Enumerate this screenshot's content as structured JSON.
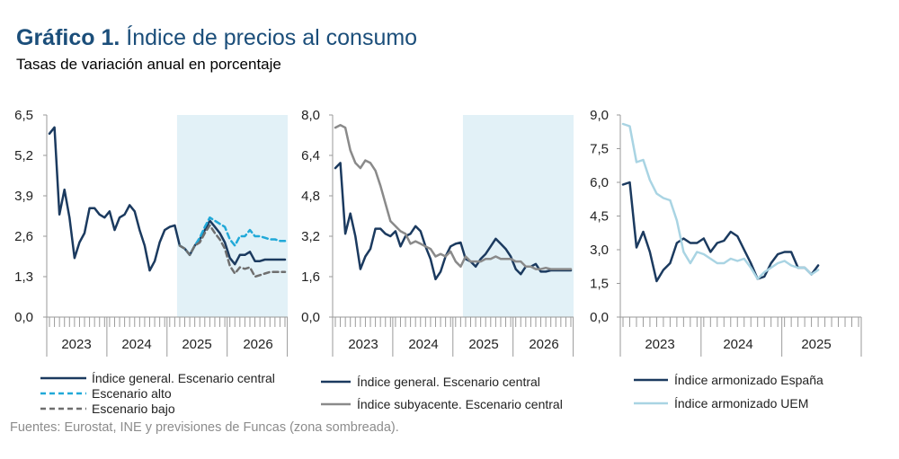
{
  "header": {
    "label": "Gráfico 1.",
    "title": "Índice de precios al consumo",
    "subtitle": "Tasas de variación anual en porcentaje"
  },
  "source": "Fuentes: Eurostat, INE y previsiones de Funcas (zona sombreada).",
  "colors": {
    "navy": "#1b3a5f",
    "cyan": "#21a9d8",
    "darkgray": "#6f6f6f",
    "gray": "#8a8a8a",
    "lightblue": "#a9d4e3",
    "shade": "#e2f1f7",
    "axis": "#9a9a9a",
    "text": "#222222"
  },
  "chart_data": [
    {
      "type": "line",
      "ylim": [
        0,
        6.5
      ],
      "yticks": [
        "0,0",
        "1,3",
        "2,6",
        "3,9",
        "5,2",
        "6,5"
      ],
      "x_range": [
        0,
        47
      ],
      "year_labels": [
        "2023",
        "2024",
        "2025",
        "2026"
      ],
      "forecast_start": 26,
      "series": [
        {
          "name": "Índice general. Escenario central",
          "style": "solid",
          "color": "navy",
          "start": 0,
          "values": [
            5.9,
            6.1,
            3.3,
            4.1,
            3.2,
            1.9,
            2.4,
            2.7,
            3.5,
            3.5,
            3.3,
            3.2,
            3.4,
            2.8,
            3.2,
            3.3,
            3.6,
            3.4,
            2.8,
            2.3,
            1.5,
            1.8,
            2.4,
            2.8,
            2.9,
            2.95,
            2.3,
            2.2,
            2.0,
            2.3,
            2.5,
            2.8,
            3.1,
            2.9,
            2.7,
            2.4,
            1.9,
            1.7,
            2.0,
            2.0,
            2.1,
            1.8,
            1.8,
            1.85,
            1.85,
            1.85,
            1.85,
            1.85
          ]
        },
        {
          "name": "Escenario alto",
          "style": "dashed",
          "color": "cyan",
          "start": 26,
          "values": [
            2.3,
            2.2,
            2.0,
            2.3,
            2.55,
            2.9,
            3.2,
            3.1,
            3.0,
            2.9,
            2.5,
            2.3,
            2.6,
            2.6,
            2.8,
            2.6,
            2.6,
            2.55,
            2.5,
            2.5,
            2.45,
            2.45
          ]
        },
        {
          "name": "Escenario bajo",
          "style": "dashed",
          "color": "darkgray",
          "start": 26,
          "values": [
            2.3,
            2.2,
            2.0,
            2.3,
            2.4,
            2.7,
            2.95,
            2.7,
            2.5,
            2.2,
            1.65,
            1.4,
            1.6,
            1.55,
            1.6,
            1.3,
            1.35,
            1.4,
            1.45,
            1.45,
            1.45,
            1.45
          ]
        }
      ],
      "legend": [
        "Índice general. Escenario central",
        "Escenario alto",
        "Escenario bajo"
      ]
    },
    {
      "type": "line",
      "ylim": [
        0,
        8.0
      ],
      "yticks": [
        "0,0",
        "1,6",
        "3,2",
        "4,8",
        "6,4",
        "8,0"
      ],
      "x_range": [
        0,
        47
      ],
      "year_labels": [
        "2023",
        "2024",
        "2025",
        "2026"
      ],
      "forecast_start": 26,
      "series": [
        {
          "name": "Índice general. Escenario central",
          "style": "solid",
          "color": "navy",
          "start": 0,
          "values": [
            5.9,
            6.1,
            3.3,
            4.1,
            3.2,
            1.9,
            2.4,
            2.7,
            3.5,
            3.5,
            3.3,
            3.2,
            3.4,
            2.8,
            3.2,
            3.3,
            3.6,
            3.4,
            2.8,
            2.3,
            1.5,
            1.8,
            2.4,
            2.8,
            2.9,
            2.95,
            2.3,
            2.2,
            2.0,
            2.3,
            2.5,
            2.8,
            3.1,
            2.9,
            2.7,
            2.4,
            1.9,
            1.7,
            2.0,
            2.0,
            2.1,
            1.8,
            1.8,
            1.85,
            1.85,
            1.85,
            1.85,
            1.85
          ]
        },
        {
          "name": "Índice subyacente. Escenario central",
          "style": "solid",
          "color": "gray",
          "start": 0,
          "values": [
            7.5,
            7.6,
            7.5,
            6.6,
            6.1,
            5.9,
            6.2,
            6.1,
            5.8,
            5.2,
            4.5,
            3.8,
            3.6,
            3.4,
            3.3,
            2.9,
            3.0,
            2.9,
            2.8,
            2.7,
            2.4,
            2.5,
            2.4,
            2.6,
            2.2,
            2.0,
            2.4,
            2.2,
            2.2,
            2.2,
            2.3,
            2.3,
            2.4,
            2.3,
            2.3,
            2.3,
            2.2,
            2.2,
            2.0,
            2.0,
            1.9,
            1.9,
            1.95,
            1.9,
            1.9,
            1.9,
            1.9,
            1.9
          ]
        }
      ],
      "legend": [
        "Índice general. Escenario central",
        "Índice subyacente. Escenario central"
      ]
    },
    {
      "type": "line",
      "ylim": [
        0,
        9.0
      ],
      "yticks": [
        "0,0",
        "1,5",
        "3,0",
        "4,5",
        "6,0",
        "7,5",
        "9,0"
      ],
      "x_range": [
        0,
        35
      ],
      "year_labels": [
        "2023",
        "2024",
        "2025"
      ],
      "series": [
        {
          "name": "Índice armonizado España",
          "style": "solid",
          "color": "navy",
          "start": 0,
          "values": [
            5.9,
            6.0,
            3.1,
            3.8,
            2.9,
            1.6,
            2.1,
            2.4,
            3.3,
            3.5,
            3.3,
            3.3,
            3.5,
            2.9,
            3.3,
            3.4,
            3.8,
            3.6,
            3.0,
            2.4,
            1.7,
            1.8,
            2.4,
            2.8,
            2.9,
            2.9,
            2.2,
            2.2,
            1.9,
            2.3
          ]
        },
        {
          "name": "Índice armonizado UEM",
          "style": "solid",
          "color": "lightblue",
          "start": 0,
          "values": [
            8.6,
            8.5,
            6.9,
            7.0,
            6.1,
            5.5,
            5.3,
            5.2,
            4.3,
            2.9,
            2.4,
            2.9,
            2.8,
            2.6,
            2.4,
            2.4,
            2.6,
            2.5,
            2.6,
            2.2,
            1.7,
            2.0,
            2.2,
            2.4,
            2.5,
            2.3,
            2.2,
            2.2,
            1.9,
            2.1
          ]
        }
      ],
      "legend": [
        "Índice armonizado España",
        "Índice armonizado UEM"
      ]
    }
  ]
}
